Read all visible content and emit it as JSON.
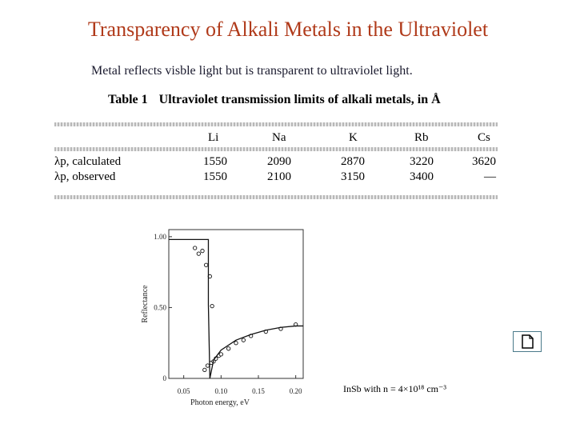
{
  "title": "Transparency of Alkali Metals in the Ultraviolet",
  "subtitle": "Metal reflects visble light but is transparent to ultraviolet light.",
  "table": {
    "number": "Table 1",
    "caption": "Ultraviolet transmission limits of alkali metals, in Å",
    "columns": [
      "Li",
      "Na",
      "K",
      "Rb",
      "Cs"
    ],
    "rows": [
      {
        "label": "λp, calculated",
        "values": [
          "1550",
          "2090",
          "2870",
          "3220",
          "3620"
        ]
      },
      {
        "label": "λp, observed",
        "values": [
          "1550",
          "2100",
          "3150",
          "3400",
          "—"
        ]
      }
    ]
  },
  "chart_data": {
    "type": "scatter",
    "title": "",
    "xlabel": "Photon energy, eV",
    "ylabel": "Reflectance",
    "xlim": [
      0.03,
      0.21
    ],
    "ylim": [
      0,
      1.05
    ],
    "xticks": [
      "0.05",
      "0.10",
      "0.15",
      "0.20"
    ],
    "yticks": [
      "0",
      "0.50",
      "1.00"
    ],
    "series": [
      {
        "kind": "points",
        "x": [
          0.065,
          0.07,
          0.075,
          0.08,
          0.085,
          0.088,
          0.078,
          0.082,
          0.087,
          0.09,
          0.093,
          0.097,
          0.1,
          0.11,
          0.12,
          0.13,
          0.14,
          0.16,
          0.18,
          0.2
        ],
        "y": [
          0.92,
          0.88,
          0.9,
          0.8,
          0.72,
          0.51,
          0.06,
          0.09,
          0.11,
          0.12,
          0.14,
          0.16,
          0.17,
          0.21,
          0.25,
          0.27,
          0.3,
          0.33,
          0.35,
          0.38
        ]
      },
      {
        "kind": "line",
        "x": [
          0.03,
          0.083,
          0.083,
          0.085,
          0.09,
          0.1,
          0.12,
          0.14,
          0.16,
          0.18,
          0.2,
          0.21
        ],
        "y": [
          0.98,
          0.98,
          0.52,
          0.0,
          0.13,
          0.2,
          0.27,
          0.31,
          0.34,
          0.36,
          0.37,
          0.37
        ]
      }
    ]
  },
  "plot_note": "InSb with n = 4×10¹⁸ cm⁻³",
  "icons": {
    "slide_link": "document-icon"
  }
}
